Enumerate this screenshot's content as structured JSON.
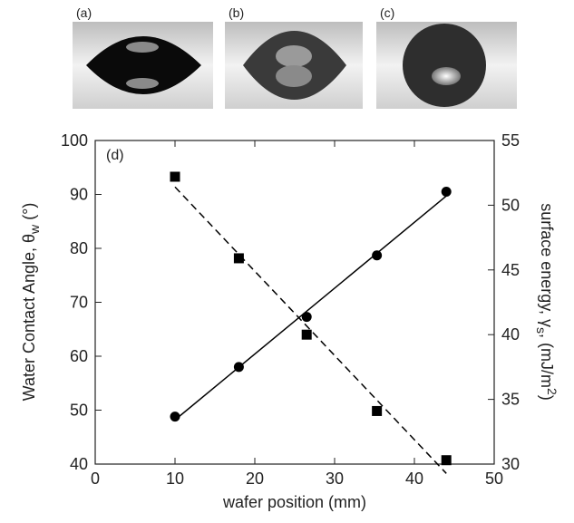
{
  "panels": [
    {
      "label": "(a)"
    },
    {
      "label": "(b)"
    },
    {
      "label": "(c)"
    }
  ],
  "chart_data": {
    "type": "scatter",
    "panel_label": "(d)",
    "xlabel": "wafer position (mm)",
    "ylabel": [
      "Water Contact Angle, θ",
      "w",
      " (°)"
    ],
    "y2label": [
      "surface energy, γ",
      "s",
      ", (mJ/m",
      "2",
      ")"
    ],
    "xlim": [
      0,
      50
    ],
    "xticks": [
      0,
      10,
      20,
      30,
      40,
      50
    ],
    "ylim": [
      40,
      100
    ],
    "yticks": [
      40,
      50,
      60,
      70,
      80,
      90,
      100
    ],
    "y2lim": [
      30,
      55
    ],
    "y2ticks": [
      30,
      35,
      40,
      45,
      50,
      55
    ],
    "series": [
      {
        "marker": "circle",
        "line_style": "solid",
        "color": "#000000",
        "x": [
          10,
          18,
          26.5,
          35.3,
          44
        ],
        "values": [
          48.8,
          58,
          67.3,
          78.7,
          90.5
        ]
      },
      {
        "marker": "square",
        "line_style": "dashed",
        "color": "#000000",
        "axis": "y2",
        "x": [
          10,
          18,
          26.5,
          35.3,
          44
        ],
        "values": [
          52.2,
          45.9,
          40,
          34.1,
          30.3
        ]
      }
    ]
  }
}
